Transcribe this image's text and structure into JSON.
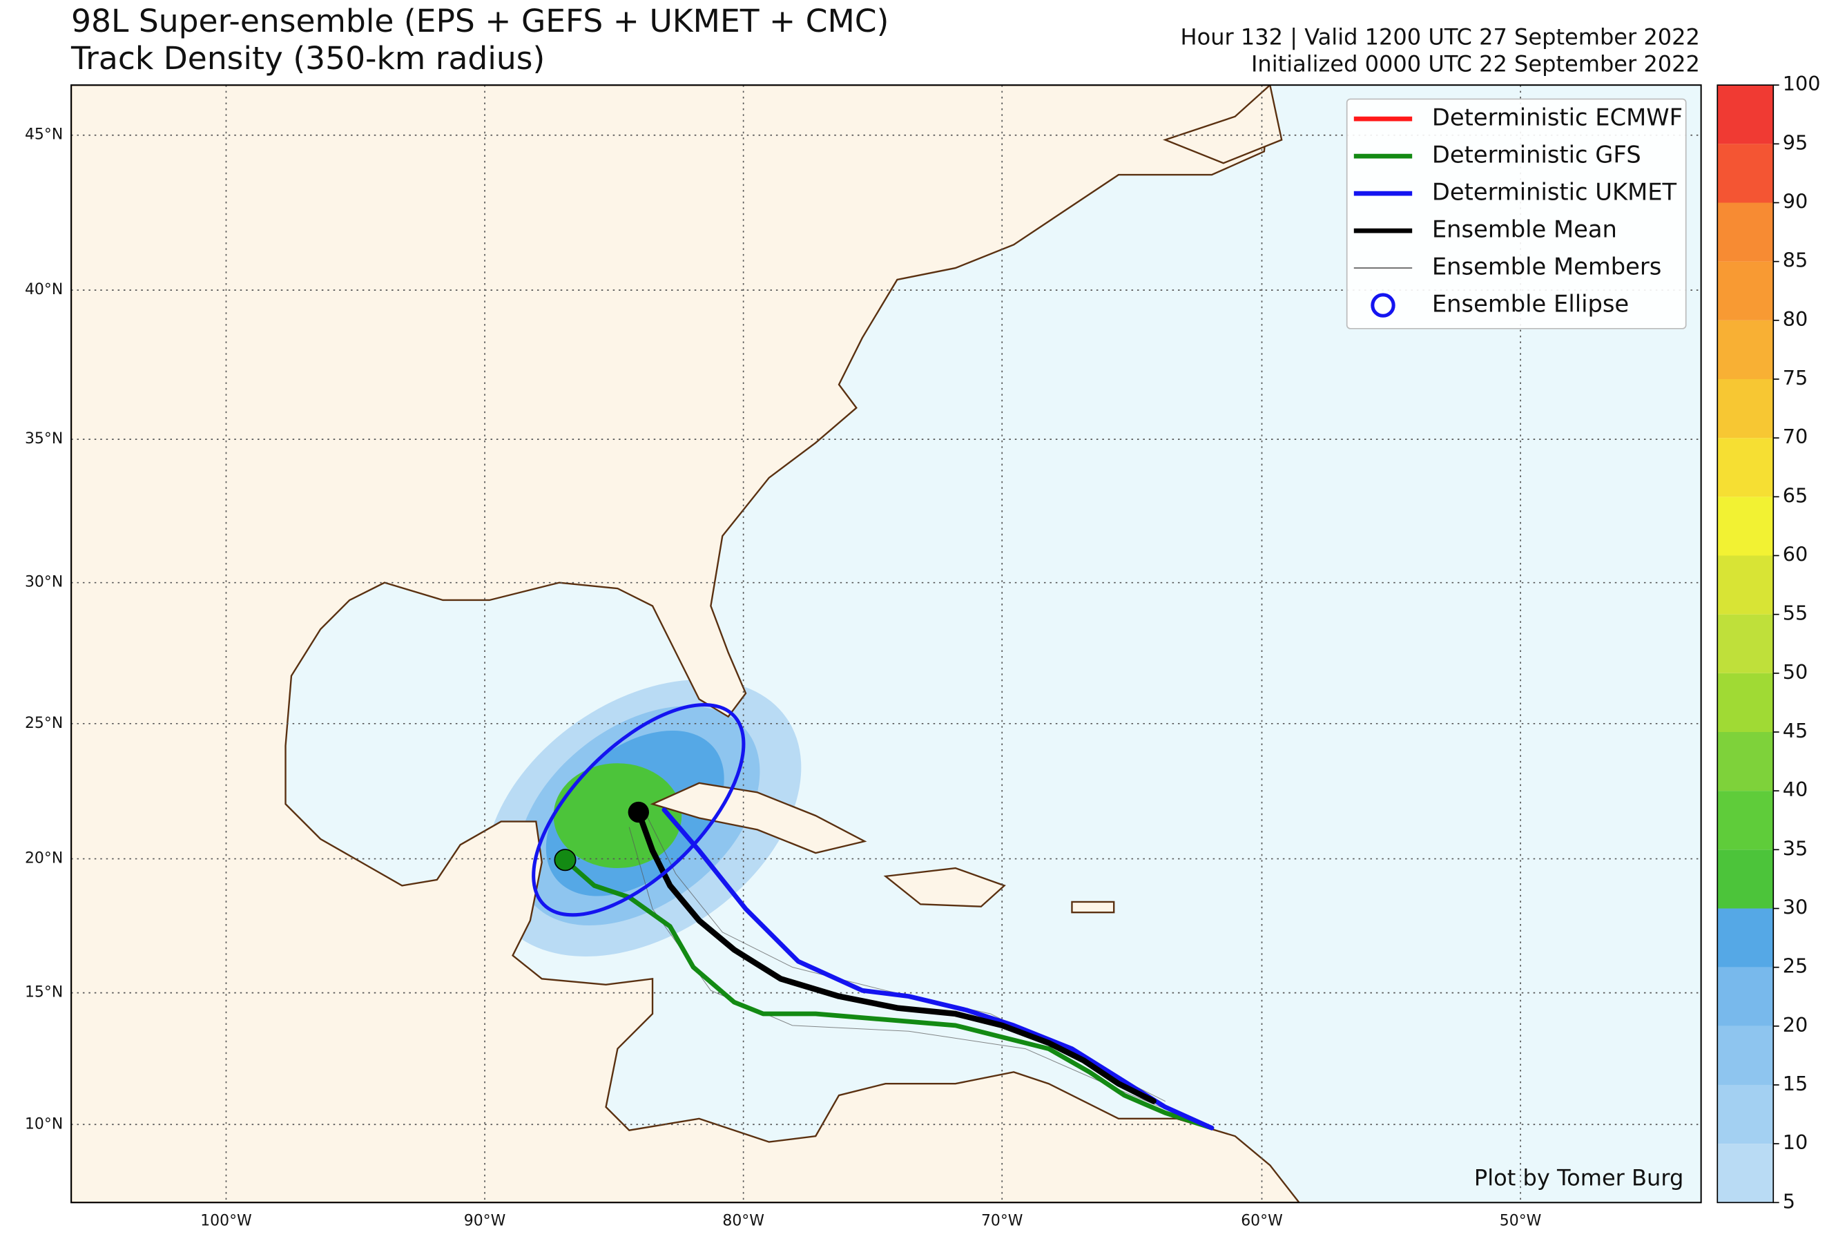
{
  "header": {
    "title_line1": "98L Super-ensemble (EPS + GEFS + UKMET + CMC)",
    "title_line2": "Track Density (350-km radius)",
    "valid": "Hour 132 | Valid 1200 UTC 27 September 2022",
    "initialized": "Initialized 0000 UTC 22 September 2022"
  },
  "map": {
    "lon_labels": [
      "100°W",
      "90°W",
      "80°W",
      "70°W",
      "60°W",
      "50°W"
    ],
    "lat_labels": [
      "45°N",
      "40°N",
      "35°N",
      "30°N",
      "25°N",
      "20°N",
      "15°N",
      "10°N"
    ],
    "credit": "Plot by Tomer Burg"
  },
  "legend": [
    {
      "label": "Deterministic ECMWF",
      "color": "#ff1a1a"
    },
    {
      "label": "Deterministic GFS",
      "color": "#138a13"
    },
    {
      "label": "Deterministic UKMET",
      "color": "#1414f0"
    },
    {
      "label": "Ensemble Mean",
      "color": "#000000"
    },
    {
      "label": "Ensemble Members",
      "color": "#555555"
    },
    {
      "label": "Ensemble Ellipse",
      "color": "#1414f0"
    }
  ],
  "colorbar": {
    "ticks": [
      5,
      10,
      15,
      20,
      25,
      30,
      35,
      40,
      45,
      50,
      55,
      60,
      65,
      70,
      75,
      80,
      85,
      90,
      95,
      100
    ],
    "colors": [
      "#b9dbf4",
      "#a3d0f2",
      "#8ec5ef",
      "#78b9ec",
      "#55a8e6",
      "#4cc43a",
      "#5fcc3a",
      "#7ed23a",
      "#a0da34",
      "#bfe03a",
      "#d8e435",
      "#f2f233",
      "#f6df33",
      "#f7c733",
      "#f8b034",
      "#f89a33",
      "#f78b33",
      "#f45533",
      "#f03a33"
    ]
  }
}
